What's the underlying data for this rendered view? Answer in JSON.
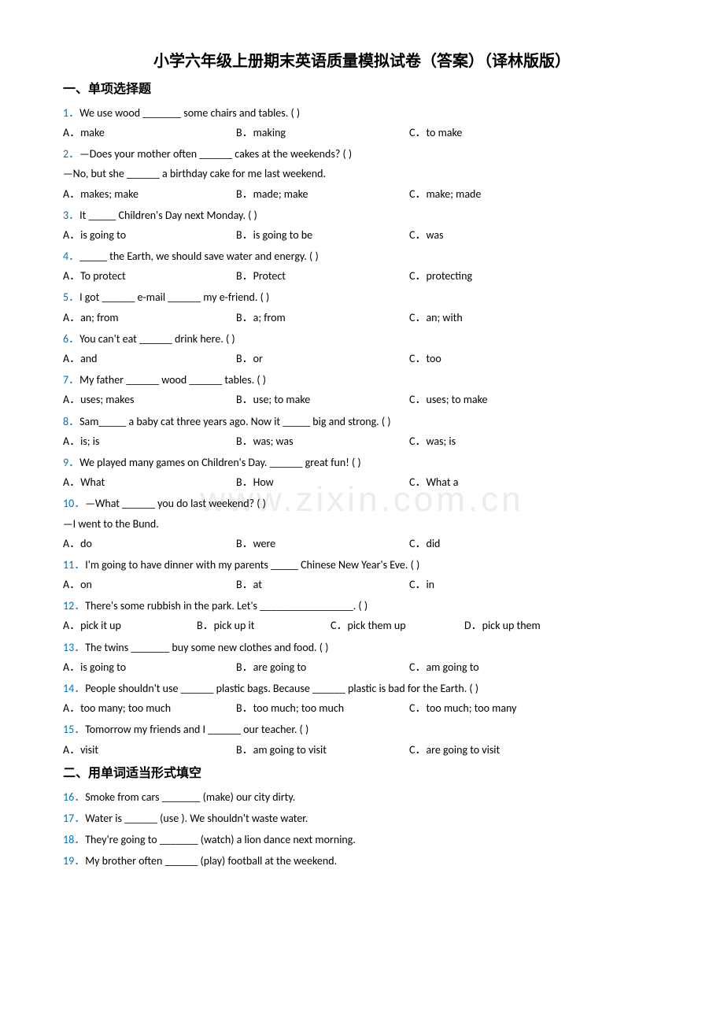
{
  "title": "小学六年级上册期末英语质量模拟试卷（答案）（译林版版）",
  "section1": "一、单项选择题",
  "section2": "二、用单词适当形式填空",
  "watermark": "www.zixin.com.cn",
  "q": [
    {
      "n": "1．",
      "t": "We use wood _______ some chairs and tables. (     )",
      "opts": [
        "A．make",
        "B．making",
        "C．to make"
      ]
    },
    {
      "n": "2．",
      "t": "—Does your mother often ______ cakes at the weekends? (     )",
      "t2": "—No, but she ______ a birthday cake for me last weekend.",
      "opts": [
        "A．makes; make",
        "B．made; make",
        "C．make; made"
      ]
    },
    {
      "n": "3．",
      "t": "It _____ Children's Day next Monday. (    )",
      "opts": [
        "A．is going to",
        "B．is going to be",
        "C．was"
      ]
    },
    {
      "n": "4．",
      "t": "_____ the Earth, we should save water and energy. (    )",
      "opts": [
        "A．To protect",
        "B．Protect",
        "C．protecting"
      ]
    },
    {
      "n": "5．",
      "t": "I got ______ e-mail ______ my e-friend. (    )",
      "opts": [
        "A．an; from",
        "B．a; from",
        "C．an; with"
      ]
    },
    {
      "n": "6．",
      "t": "You can't eat ______ drink here. (    )",
      "opts": [
        "A．and",
        "B．or",
        "C．too"
      ]
    },
    {
      "n": "7．",
      "t": "My father ______ wood ______ tables. (    )",
      "opts": [
        "A．uses; makes",
        "B．use; to make",
        "C．uses; to make"
      ]
    },
    {
      "n": "8．",
      "t": "Sam_____ a baby cat three years ago. Now it _____ big and strong. (     )",
      "opts": [
        "A．is; is",
        "B．was; was",
        "C．was; is"
      ]
    },
    {
      "n": "9．",
      "t": "We played many games on Children's Day. ______ great fun! (    )",
      "opts": [
        "A．What",
        "B．How",
        "C．What a"
      ]
    },
    {
      "n": "10．",
      "t": "—What ______ you do last weekend? (    )",
      "t2": "—I went to the Bund.",
      "opts": [
        "A．do",
        "B．were",
        "C．did"
      ]
    },
    {
      "n": "11．",
      "t": "I'm going to have dinner with my parents _____ Chinese New Year's Eve. (     )",
      "opts": [
        "A．on",
        "B．at",
        "C．in"
      ]
    },
    {
      "n": "12．",
      "t": "There's some rubbish in the park. Let's _________________. (     )",
      "opts": [
        "A．pick it up",
        "B．pick up it",
        "C．pick them up",
        "D．pick up them"
      ]
    },
    {
      "n": "13．",
      "t": "The twins _______ buy some new clothes and food. (    )",
      "opts": [
        "A．is going to",
        "B．are going to",
        "C．am going to"
      ]
    },
    {
      "n": "14．",
      "t": "People shouldn't use ______ plastic bags. Because ______ plastic is bad for the Earth. (     )",
      "opts": [
        "A．too many; too much",
        "B．too much; too much",
        "C．too much; too many"
      ]
    },
    {
      "n": "15．",
      "t": "Tomorrow my friends and I ______ our teacher. (     )",
      "opts": [
        "A．visit",
        "B．am going to visit",
        "C．are going to visit"
      ]
    }
  ],
  "fill": [
    {
      "n": "16．",
      "t": "Smoke from cars _______ (make) our city dirty."
    },
    {
      "n": "17．",
      "t": "Water is ______ (use ). We shouldn't waste water."
    },
    {
      "n": "18．",
      "t": "They're going to _______ (watch) a lion dance next morning."
    },
    {
      "n": "19．",
      "t": "My brother often ______ (play) football at the weekend."
    }
  ]
}
